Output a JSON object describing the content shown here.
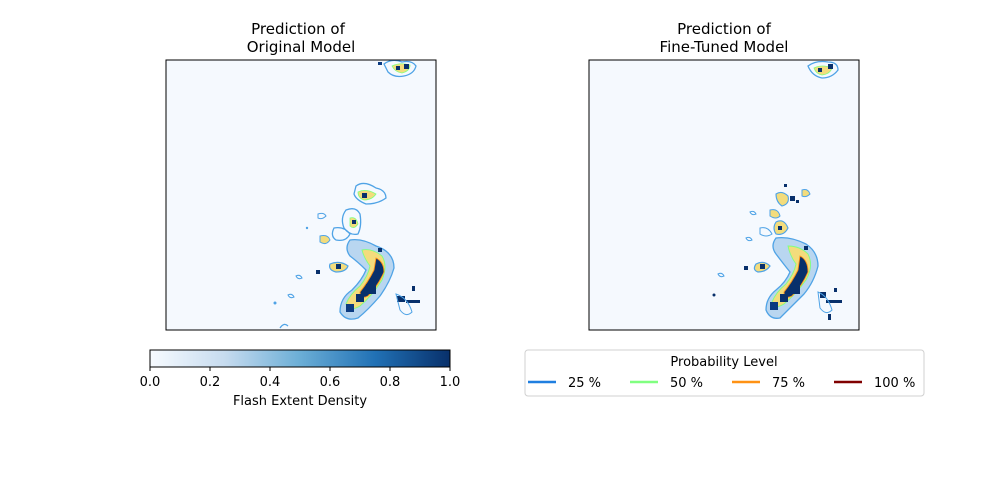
{
  "chart_data": [
    {
      "type": "heatmap",
      "title_line1": "Prediction of",
      "title_line2": "Original Model",
      "xlabel": "",
      "ylabel": "",
      "grid": false
    },
    {
      "type": "heatmap",
      "title_line1": "Prediction of",
      "title_line2": "Fine-Tuned Model",
      "xlabel": "",
      "ylabel": "",
      "grid": false
    }
  ],
  "colorbar": {
    "label": "Flash Extent Density",
    "range": [
      0.0,
      1.0
    ],
    "ticks": [
      "0.0",
      "0.2",
      "0.4",
      "0.6",
      "0.8",
      "1.0"
    ],
    "color_low": "#f7fbff",
    "color_mid": "#6baed6",
    "color_high": "#08306b"
  },
  "legend": {
    "title": "Probability Level",
    "placement": "lower-right",
    "entries": [
      {
        "label": "25 %",
        "color": "#1f7fe0"
      },
      {
        "label": "50 %",
        "color": "#80ff80"
      },
      {
        "label": "75 %",
        "color": "#ff9214"
      },
      {
        "label": "100 %",
        "color": "#800000"
      }
    ]
  }
}
